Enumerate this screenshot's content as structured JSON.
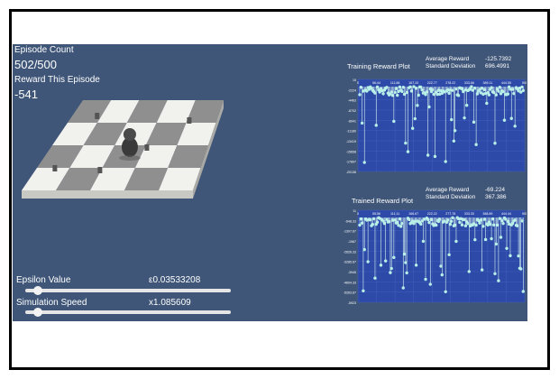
{
  "stats": {
    "episode_label": "Episode Count",
    "episode_value": "502/500",
    "reward_label": "Reward This Episode",
    "reward_value": "-541"
  },
  "controls": {
    "epsilon_label": "Epsilon Value",
    "epsilon_value": "ε0.03533208",
    "epsilon_level": 0.06,
    "speed_label": "Simulation Speed",
    "speed_value": "x1.085609",
    "speed_level": 0.06
  },
  "training_plot": {
    "title": "Training Reward Plot",
    "avg_label": "Average Reward",
    "avg_value": "-125.7392",
    "std_label": "Standard Deviation",
    "std_value": "696.4991",
    "x_ticks": [
      "0",
      "56.44",
      "111.88",
      "167.33",
      "222.77",
      "278.22",
      "333.66",
      "389.11",
      "444.55",
      "500"
    ],
    "y_ticks": [
      "15",
      "-2224",
      "-4463",
      "-6702",
      "-8941",
      "-11180",
      "-13419",
      "-15658",
      "-17897",
      "-20136"
    ]
  },
  "trained_plot": {
    "title": "Trained Reward Plot",
    "avg_label": "Average Reward",
    "avg_value": "-69.224",
    "std_label": "Standard Deviation",
    "std_value": "367.386",
    "x_ticks": [
      "0",
      "55.56",
      "111.11",
      "166.67",
      "222.22",
      "277.78",
      "333.33",
      "388.89",
      "444.44",
      "500"
    ],
    "y_ticks": [
      "11",
      "-648.33",
      "-1307.67",
      "-1967",
      "-2626.33",
      "-3285.67",
      "-3945",
      "-4604.33",
      "-5263.67",
      "-5923"
    ]
  },
  "colors": {
    "panel_bg": "#3f5678",
    "plot_bg": "#2d4aa8",
    "point": "#b8f0e8"
  }
}
